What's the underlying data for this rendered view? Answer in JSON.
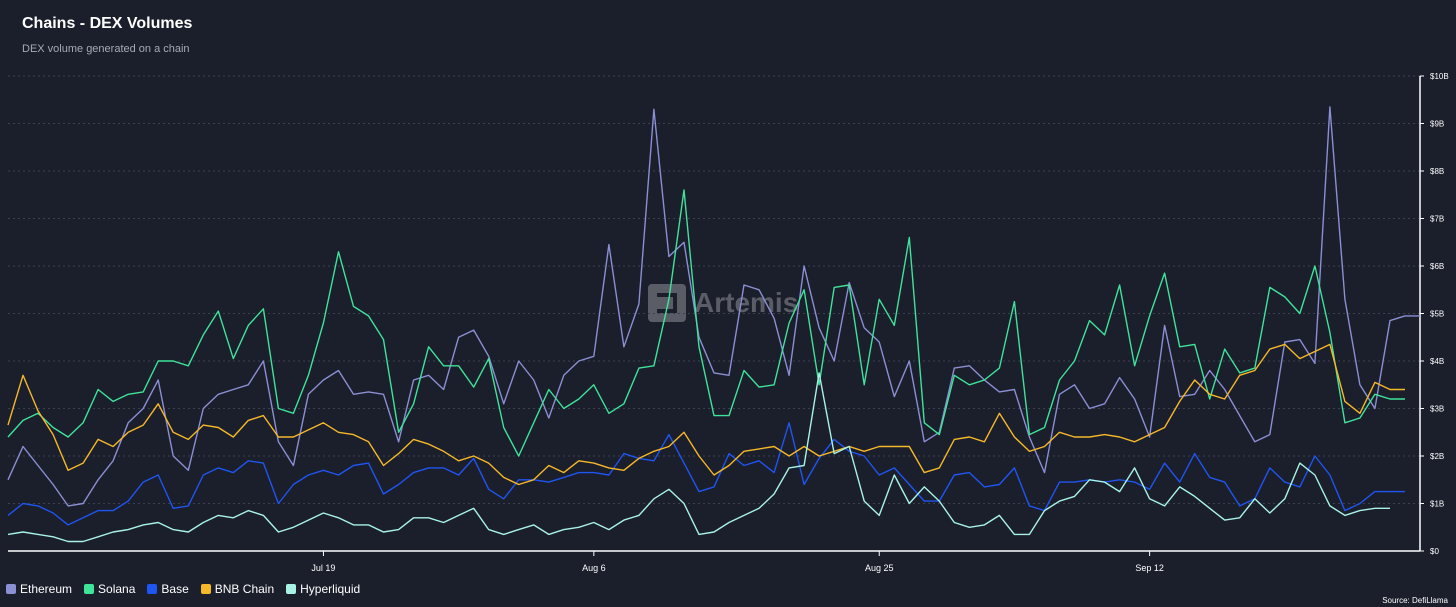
{
  "header": {
    "title": "Chains - DEX Volumes",
    "subtitle": "DEX volume generated on a chain"
  },
  "footer": {
    "source": "Source: DefiLlama"
  },
  "watermark": {
    "text": "Artemis"
  },
  "colors": {
    "background": "#1b1e2b",
    "grid": "#3c4050",
    "axis": "#ffffff",
    "Ethereum": "#8b8fd3",
    "Solana": "#3fe39a",
    "Base": "#1f55f0",
    "BNB Chain": "#f5b82a",
    "Hyperliquid": "#a8f3e6"
  },
  "chart_data": {
    "type": "line",
    "title": "Chains - DEX Volumes",
    "subtitle": "DEX volume generated on a chain",
    "xlabel": "",
    "ylabel": "",
    "ylim": [
      0,
      10
    ],
    "y_unit": "B",
    "y_ticks": [
      "$0",
      "$1B",
      "$2B",
      "$3B",
      "$4B",
      "$5B",
      "$6B",
      "$7B",
      "$8B",
      "$9B",
      "$10B"
    ],
    "x_tick_labels": [
      {
        "label": "Jul 19",
        "index": 21
      },
      {
        "label": "Aug 6",
        "index": 39
      },
      {
        "label": "Aug 25",
        "index": 58
      },
      {
        "label": "Sep 12",
        "index": 76
      }
    ],
    "legend_position": "bottom-left",
    "grid": true,
    "series": [
      {
        "name": "Ethereum",
        "values": [
          1.5,
          2.2,
          1.8,
          1.4,
          0.95,
          1.0,
          1.5,
          1.9,
          2.7,
          3.0,
          3.6,
          2.0,
          1.7,
          3.0,
          3.3,
          3.4,
          3.5,
          4.0,
          2.3,
          1.8,
          3.3,
          3.6,
          3.8,
          3.3,
          3.35,
          3.3,
          2.3,
          3.6,
          3.7,
          3.4,
          4.5,
          4.65,
          4.1,
          3.1,
          4.0,
          3.6,
          2.8,
          3.7,
          4.0,
          4.1,
          6.45,
          4.3,
          5.2,
          9.3,
          6.2,
          6.5,
          4.5,
          3.75,
          3.7,
          5.6,
          5.5,
          4.9,
          3.7,
          6.0,
          4.7,
          4.0,
          5.65,
          4.7,
          4.4,
          3.25,
          4.0,
          2.3,
          2.5,
          3.85,
          3.9,
          3.6,
          3.35,
          3.4,
          2.4,
          1.65,
          3.3,
          3.5,
          3.0,
          3.1,
          3.65,
          3.2,
          2.4,
          4.75,
          3.25,
          3.3,
          3.8,
          3.4,
          2.85,
          2.3,
          2.45,
          4.4,
          4.45,
          3.95,
          9.35,
          5.3,
          3.5,
          3.0,
          4.85,
          4.95,
          4.95
        ]
      },
      {
        "name": "Solana",
        "values": [
          2.4,
          2.75,
          2.9,
          2.6,
          2.4,
          2.7,
          3.4,
          3.15,
          3.3,
          3.35,
          4.0,
          4.0,
          3.9,
          4.55,
          5.05,
          4.05,
          4.75,
          5.1,
          3.0,
          2.9,
          3.7,
          4.8,
          6.3,
          5.15,
          4.95,
          4.45,
          2.5,
          3.1,
          4.3,
          3.9,
          3.9,
          3.45,
          4.05,
          2.6,
          2.0,
          2.7,
          3.4,
          3.0,
          3.2,
          3.5,
          2.9,
          3.1,
          3.85,
          3.9,
          5.3,
          7.6,
          4.3,
          2.85,
          2.85,
          3.8,
          3.45,
          3.5,
          4.8,
          5.5,
          3.5,
          5.55,
          5.6,
          3.5,
          5.3,
          4.75,
          6.6,
          2.7,
          2.45,
          3.7,
          3.5,
          3.6,
          3.85,
          5.25,
          2.45,
          2.6,
          3.6,
          4.0,
          4.85,
          4.55,
          5.6,
          3.9,
          4.95,
          5.85,
          4.3,
          4.35,
          3.2,
          4.25,
          3.75,
          3.85,
          5.55,
          5.35,
          5.0,
          6.0,
          4.6,
          2.7,
          2.8,
          3.3,
          3.2,
          3.2
        ]
      },
      {
        "name": "Base",
        "values": [
          0.75,
          1.0,
          0.95,
          0.8,
          0.55,
          0.7,
          0.85,
          0.85,
          1.05,
          1.45,
          1.6,
          0.9,
          0.95,
          1.6,
          1.75,
          1.65,
          1.9,
          1.85,
          1.0,
          1.4,
          1.6,
          1.7,
          1.6,
          1.8,
          1.85,
          1.2,
          1.4,
          1.65,
          1.75,
          1.75,
          1.6,
          1.95,
          1.3,
          1.1,
          1.5,
          1.5,
          1.45,
          1.55,
          1.65,
          1.65,
          1.6,
          2.05,
          1.95,
          1.9,
          2.45,
          1.85,
          1.25,
          1.35,
          2.05,
          1.8,
          1.9,
          1.65,
          2.7,
          1.4,
          1.95,
          2.35,
          2.1,
          2.0,
          1.6,
          1.75,
          1.4,
          1.05,
          1.05,
          1.6,
          1.65,
          1.35,
          1.4,
          1.75,
          0.95,
          0.85,
          1.45,
          1.45,
          1.5,
          1.45,
          1.5,
          1.45,
          1.3,
          1.85,
          1.45,
          2.05,
          1.55,
          1.45,
          0.95,
          1.1,
          1.75,
          1.45,
          1.35,
          2.0,
          1.6,
          0.85,
          1.0,
          1.25,
          1.25,
          1.25
        ]
      },
      {
        "name": "BNB Chain",
        "values": [
          2.65,
          3.7,
          2.95,
          2.45,
          1.7,
          1.85,
          2.35,
          2.2,
          2.5,
          2.65,
          3.1,
          2.5,
          2.35,
          2.65,
          2.6,
          2.4,
          2.75,
          2.85,
          2.4,
          2.4,
          2.55,
          2.7,
          2.5,
          2.45,
          2.3,
          1.8,
          2.05,
          2.35,
          2.25,
          2.1,
          1.9,
          2.0,
          1.85,
          1.55,
          1.4,
          1.5,
          1.8,
          1.65,
          1.9,
          1.85,
          1.75,
          1.7,
          1.95,
          2.1,
          2.2,
          2.5,
          2.0,
          1.6,
          1.8,
          2.1,
          2.15,
          2.2,
          2.0,
          2.2,
          2.0,
          2.1,
          2.2,
          2.1,
          2.2,
          2.2,
          2.2,
          1.65,
          1.75,
          2.35,
          2.4,
          2.3,
          2.9,
          2.4,
          2.1,
          2.2,
          2.5,
          2.4,
          2.4,
          2.45,
          2.4,
          2.3,
          2.45,
          2.6,
          3.15,
          3.6,
          3.3,
          3.2,
          3.7,
          3.8,
          4.25,
          4.35,
          4.05,
          4.2,
          4.35,
          3.15,
          2.9,
          3.55,
          3.4,
          3.4
        ]
      },
      {
        "name": "Hyperliquid",
        "values": [
          0.35,
          0.4,
          0.35,
          0.3,
          0.2,
          0.2,
          0.3,
          0.4,
          0.45,
          0.55,
          0.6,
          0.45,
          0.4,
          0.6,
          0.75,
          0.7,
          0.85,
          0.75,
          0.4,
          0.5,
          0.65,
          0.8,
          0.7,
          0.55,
          0.55,
          0.4,
          0.45,
          0.7,
          0.7,
          0.6,
          0.75,
          0.9,
          0.45,
          0.35,
          0.45,
          0.55,
          0.35,
          0.45,
          0.5,
          0.6,
          0.45,
          0.65,
          0.75,
          1.1,
          1.3,
          1.0,
          0.35,
          0.4,
          0.6,
          0.75,
          0.9,
          1.2,
          1.75,
          1.8,
          3.75,
          2.05,
          2.2,
          1.05,
          0.75,
          1.6,
          1.0,
          1.35,
          1.05,
          0.6,
          0.5,
          0.55,
          0.75,
          0.35,
          0.35,
          0.85,
          1.05,
          1.15,
          1.5,
          1.45,
          1.25,
          1.75,
          1.1,
          0.95,
          1.35,
          1.15,
          0.9,
          0.65,
          0.7,
          1.1,
          0.8,
          1.1,
          1.85,
          1.6,
          0.95,
          0.75,
          0.85,
          0.9,
          0.9
        ]
      }
    ]
  }
}
